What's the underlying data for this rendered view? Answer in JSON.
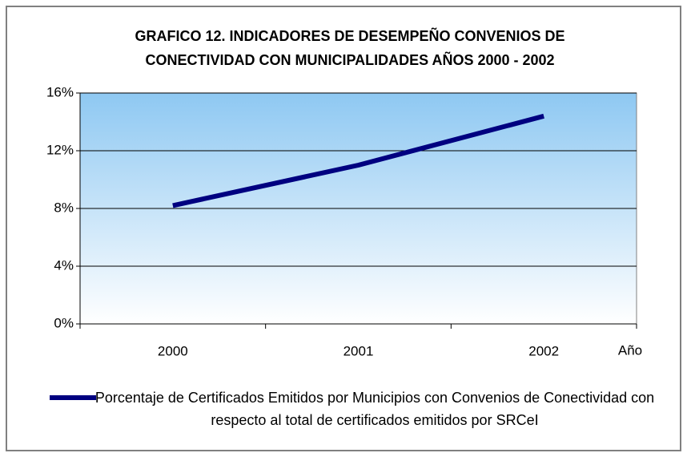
{
  "chart_data": {
    "type": "line",
    "title": [
      "GRAFICO 12. INDICADORES DE DESEMPEÑO CONVENIOS DE",
      "CONECTIVIDAD CON MUNICIPALIDADES AÑOS 2000 -  2002"
    ],
    "x_label": "Año",
    "categories": [
      "2000",
      "2001",
      "2002"
    ],
    "series": [
      {
        "name": "Porcentaje de Certificados Emitidos por Municipios  con Convenios de Conectividad con respecto al total de certificados emitidos por SRCeI",
        "color": "#000080",
        "values": [
          8.2,
          11,
          14.4
        ]
      }
    ],
    "ylim": [
      0,
      16
    ],
    "yticks": [
      {
        "value": 0,
        "label": "0%"
      },
      {
        "value": 4,
        "label": "4%"
      },
      {
        "value": 8,
        "label": "8%"
      },
      {
        "value": 12,
        "label": "12%"
      },
      {
        "value": 16,
        "label": "16%"
      }
    ],
    "grid": true,
    "legend": "bottom"
  }
}
